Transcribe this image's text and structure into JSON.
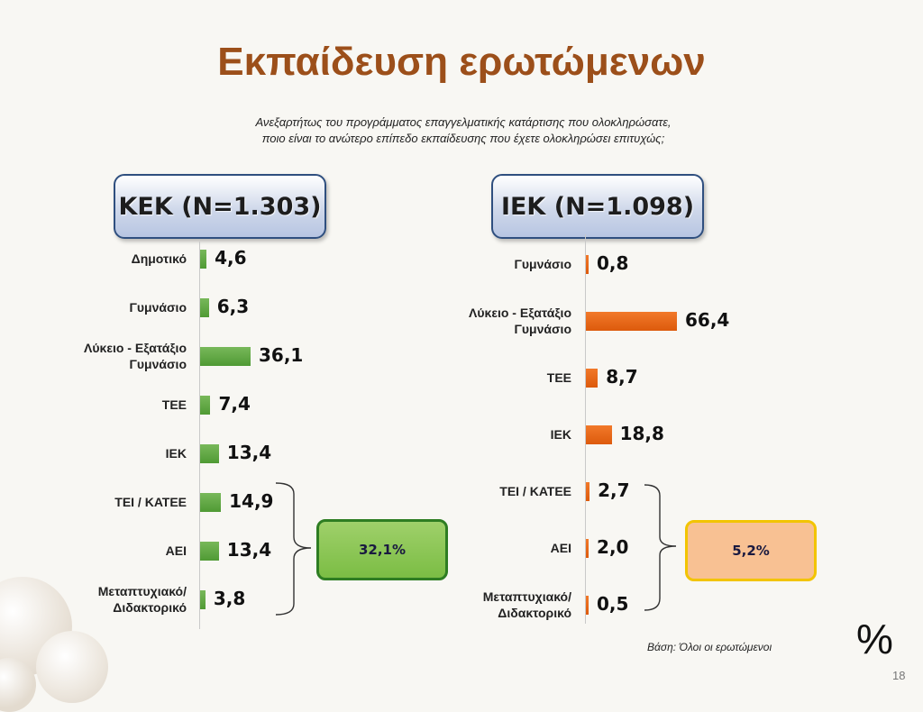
{
  "slide": {
    "title": "Εκπαίδευση ερωτώμενων",
    "question_line1": "Ανεξαρτήτως του προγράμματος επαγγελματικής κατάρτισης που ολοκληρώσατε,",
    "question_line2": "ποιο  είναι το ανώτερο επίπεδο εκπαίδευσης που έχετε ολοκληρώσει επιτυχώς;",
    "base_note": "Βάση: Όλοι οι ερωτώμενοι",
    "percent_symbol": "%",
    "page_number": "18"
  },
  "chart_data": [
    {
      "type": "bar",
      "orientation": "horizontal",
      "title": "ΚΕΚ (N=1.303)",
      "categories": [
        "Δημοτικό",
        "Γυμνάσιο",
        "Λύκειο - Εξατάξιο Γυμνάσιο",
        "ΤΕΕ",
        "ΙΕΚ",
        "ΤΕΙ / ΚΑΤΕΕ",
        "ΑΕΙ",
        "Μεταπτυχιακό/ Διδακτορικό"
      ],
      "values": [
        4.6,
        6.3,
        36.1,
        7.4,
        13.4,
        14.9,
        13.4,
        3.8
      ],
      "value_labels": [
        "4,6",
        "6,3",
        "36,1",
        "7,4",
        "13,4",
        "14,9",
        "13,4",
        "3,8"
      ],
      "color": "#5aa63c",
      "bracket_summary": "32,1%",
      "grid": false
    },
    {
      "type": "bar",
      "orientation": "horizontal",
      "title": "ΙΕΚ (N=1.098)",
      "categories": [
        "Γυμνάσιο",
        "Λύκειο - Εξατάξιο Γυμνάσιο",
        "ΤΕΕ",
        "ΙΕΚ",
        "ΤΕΙ / ΚΑΤΕΕ",
        "ΑΕΙ",
        "Μεταπτυχιακό/ Διδακτορικό"
      ],
      "values": [
        0.8,
        66.4,
        8.7,
        18.8,
        2.7,
        2.0,
        0.5
      ],
      "value_labels": [
        "0,8",
        "66,4",
        "8,7",
        "18,8",
        "2,7",
        "2,0",
        "0,5"
      ],
      "color": "#e8620f",
      "bracket_summary": "5,2%",
      "grid": false
    }
  ]
}
